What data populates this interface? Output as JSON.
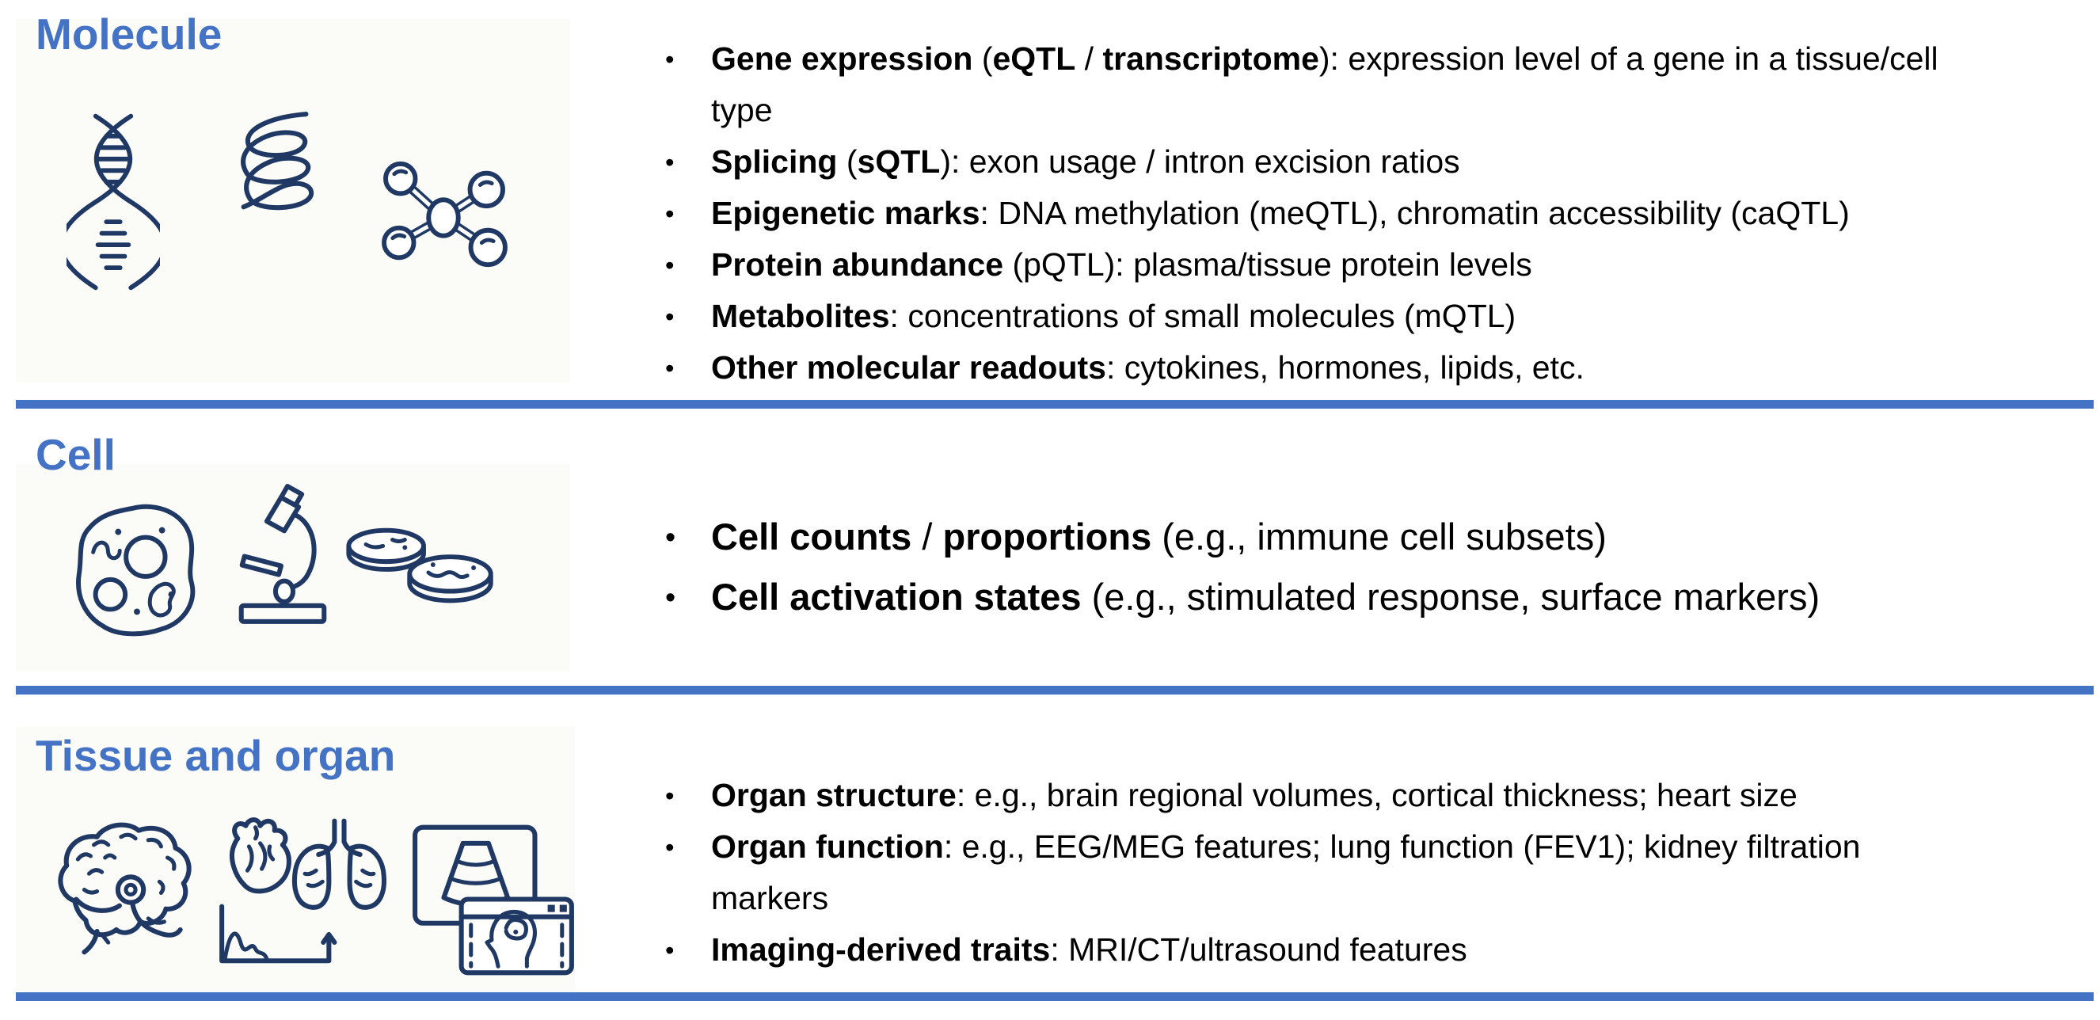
{
  "colors": {
    "title_blue": "#4472C4",
    "divider_blue": "#4472C4",
    "icon_navy": "#1F3864",
    "text": "#000000",
    "background": "#ffffff"
  },
  "sections": [
    {
      "id": "molecule",
      "title": "Molecule",
      "icons": [
        "dna-icon",
        "rna-helix-icon",
        "molecule-icon"
      ],
      "bullets": [
        {
          "segments": [
            {
              "t": "Gene expression",
              "b": true
            },
            {
              "t": " (",
              "b": false
            },
            {
              "t": "eQTL",
              "b": true
            },
            {
              "t": " / ",
              "b": false
            },
            {
              "t": "transcriptome",
              "b": true
            },
            {
              "t": "): expression level of a gene in a tissue/cell type",
              "b": false
            }
          ]
        },
        {
          "segments": [
            {
              "t": "Splicing",
              "b": true
            },
            {
              "t": " (",
              "b": false
            },
            {
              "t": "sQTL",
              "b": true
            },
            {
              "t": "): exon usage / intron excision ratios",
              "b": false
            }
          ]
        },
        {
          "segments": [
            {
              "t": "Epigenetic marks",
              "b": true
            },
            {
              "t": ": DNA methylation (meQTL), chromatin accessibility (caQTL)",
              "b": false
            }
          ]
        },
        {
          "segments": [
            {
              "t": "Protein abundance",
              "b": true
            },
            {
              "t": " (pQTL): plasma/tissue protein levels",
              "b": false
            }
          ]
        },
        {
          "segments": [
            {
              "t": "Metabolites",
              "b": true
            },
            {
              "t": ": concentrations of small molecules (mQTL)",
              "b": false
            }
          ]
        },
        {
          "segments": [
            {
              "t": "Other molecular readouts",
              "b": true
            },
            {
              "t": ": cytokines, hormones, lipids, etc.",
              "b": false
            }
          ]
        }
      ]
    },
    {
      "id": "cell",
      "title": "Cell",
      "icons": [
        "cell-icon",
        "microscope-icon",
        "petri-dish-icon"
      ],
      "bullets": [
        {
          "segments": [
            {
              "t": "Cell counts",
              "b": true
            },
            {
              "t": " / ",
              "b": false
            },
            {
              "t": "proportions",
              "b": true
            },
            {
              "t": " (e.g., immune cell subsets)",
              "b": false
            }
          ]
        },
        {
          "segments": [
            {
              "t": "Cell activation states",
              "b": true
            },
            {
              "t": " (e.g., stimulated response, surface markers)",
              "b": false
            }
          ]
        }
      ]
    },
    {
      "id": "tissue",
      "title": "Tissue and organ",
      "icons": [
        "brain-icon",
        "heart-lungs-icon",
        "medical-imaging-icon"
      ],
      "bullets": [
        {
          "segments": [
            {
              "t": "Organ structure",
              "b": true
            },
            {
              "t": ": e.g., brain regional volumes, cortical thickness; heart size",
              "b": false
            }
          ]
        },
        {
          "segments": [
            {
              "t": "Organ function",
              "b": true
            },
            {
              "t": ": e.g., EEG/MEG features; lung function (FEV1); kidney filtration markers",
              "b": false
            }
          ]
        },
        {
          "segments": [
            {
              "t": "Imaging-derived traits",
              "b": true
            },
            {
              "t": ": MRI/CT/ultrasound features",
              "b": false
            }
          ]
        }
      ]
    }
  ]
}
